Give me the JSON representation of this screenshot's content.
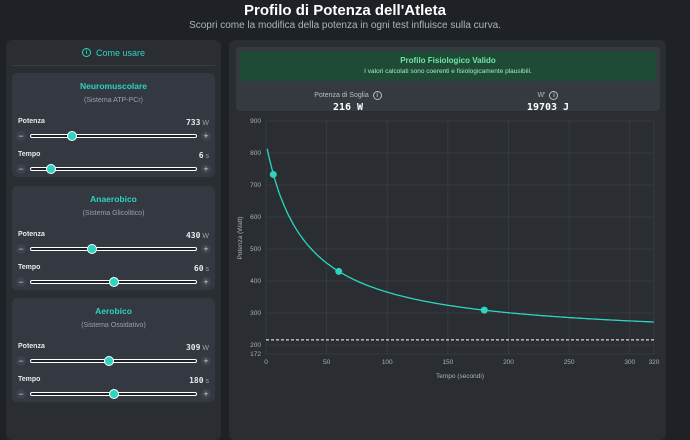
{
  "header": {
    "title": "Profilo di Potenza dell'Atleta",
    "subtitle": "Scopri come la modifica della potenza in ogni test influisce sulla curva."
  },
  "sidebar": {
    "how_to": "Come usare",
    "info_icon": "i",
    "cards": [
      {
        "title": "Neuromuscolare",
        "system": "(Sistema ATP-PCr)",
        "power_label": "Potenza",
        "power": "733",
        "power_unit": "W",
        "power_slider": 0.25,
        "time_label": "Tempo",
        "time": "6",
        "time_unit": "s",
        "time_slider": 0.12
      },
      {
        "title": "Anaerobico",
        "system": "(Sistema Glicolitico)",
        "power_label": "Potenza",
        "power": "430",
        "power_unit": "W",
        "power_slider": 0.37,
        "time_label": "Tempo",
        "time": "60",
        "time_unit": "s",
        "time_slider": 0.5
      },
      {
        "title": "Aerobico",
        "system": "(Sistema Ossidativo)",
        "power_label": "Potenza",
        "power": "309",
        "power_unit": "W",
        "power_slider": 0.47,
        "time_label": "Tempo",
        "time": "180",
        "time_unit": "s",
        "time_slider": 0.5
      }
    ],
    "minus": "−",
    "plus": "+"
  },
  "status": {
    "title": "Profilo Fisiologico Valido",
    "message": "I valori calcolati sono coerenti e fisiologicamente plausibili.",
    "cp_label": "Potenza di Soglia",
    "cp_value": "216 W",
    "wprime_label": "W'",
    "wprime_value": "19703 J"
  },
  "colors": {
    "accent": "#2dd4bf",
    "valid": "#1f4a35"
  },
  "chart_data": {
    "type": "line",
    "xlabel": "Tempo (secondi)",
    "ylabel": "Potenza (Watt)",
    "xlim": [
      0,
      320
    ],
    "ylim": [
      172,
      900
    ],
    "xticks": [
      0,
      50,
      100,
      150,
      200,
      250,
      300,
      320
    ],
    "yticks": [
      172,
      200,
      300,
      400,
      500,
      600,
      700,
      800,
      900
    ],
    "grid": true,
    "points": [
      {
        "x": 6,
        "y": 733
      },
      {
        "x": 60,
        "y": 430
      },
      {
        "x": 180,
        "y": 309
      }
    ],
    "curve": {
      "cp": 216,
      "wprime": 19703,
      "x_range": [
        1,
        320
      ]
    },
    "threshold_line": 216
  }
}
